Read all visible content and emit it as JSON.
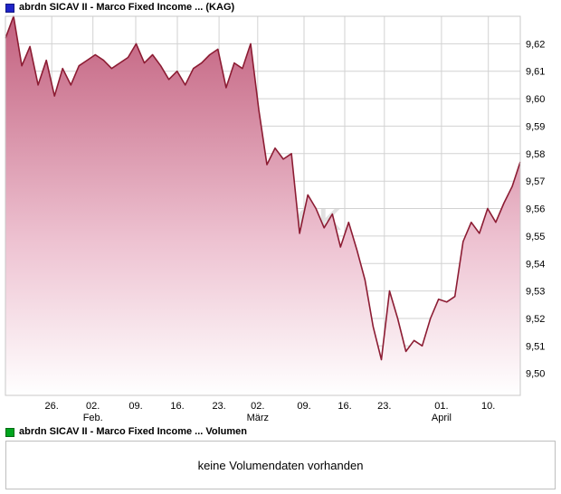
{
  "header": {
    "legend_label": "abrdn SICAV II - Marco Fixed Income ... (KAG)",
    "legend_color": "#1f24c8"
  },
  "watermark": "CK",
  "chart_data": {
    "type": "area",
    "title": "abrdn SICAV II - Marco Fixed Income ... (KAG)",
    "ylabel": "",
    "xlabel": "",
    "ylim": [
      9.492,
      9.63
    ],
    "grid": true,
    "grid_color": "#d2d2d2",
    "line_color": "#8c1c33",
    "fill_top": "#c2607e",
    "fill_mid": "#eec3d2",
    "fill_bottom": "#ffffff",
    "values": [
      9.622,
      9.63,
      9.612,
      9.619,
      9.605,
      9.614,
      9.601,
      9.611,
      9.605,
      9.612,
      9.614,
      9.616,
      9.614,
      9.611,
      9.613,
      9.615,
      9.62,
      9.613,
      9.616,
      9.612,
      9.607,
      9.61,
      9.605,
      9.611,
      9.613,
      9.616,
      9.618,
      9.604,
      9.613,
      9.611,
      9.62,
      9.596,
      9.576,
      9.582,
      9.578,
      9.58,
      9.551,
      9.565,
      9.56,
      9.553,
      9.558,
      9.546,
      9.555,
      9.545,
      9.534,
      9.517,
      9.505,
      9.53,
      9.52,
      9.508,
      9.512,
      9.51,
      9.52,
      9.527,
      9.526,
      9.528,
      9.548,
      9.555,
      9.551,
      9.56,
      9.555,
      9.562,
      9.568,
      9.577
    ],
    "y_ticks": [
      {
        "label": "9,62",
        "value": 9.62
      },
      {
        "label": "9,61",
        "value": 9.61
      },
      {
        "label": "9,60",
        "value": 9.6
      },
      {
        "label": "9,59",
        "value": 9.59
      },
      {
        "label": "9,58",
        "value": 9.58
      },
      {
        "label": "9,57",
        "value": 9.57
      },
      {
        "label": "9,56",
        "value": 9.56
      },
      {
        "label": "9,55",
        "value": 9.55
      },
      {
        "label": "9,54",
        "value": 9.54
      },
      {
        "label": "9,53",
        "value": 9.53
      },
      {
        "label": "9,52",
        "value": 9.52
      },
      {
        "label": "9,51",
        "value": 9.51
      },
      {
        "label": "9,50",
        "value": 9.5
      }
    ],
    "x_ticks": [
      {
        "label": "26.",
        "pos": 0.09
      },
      {
        "label": "02.",
        "month": "Feb.",
        "pos": 0.17
      },
      {
        "label": "09.",
        "pos": 0.253
      },
      {
        "label": "16.",
        "pos": 0.334
      },
      {
        "label": "23.",
        "pos": 0.415
      },
      {
        "label": "02.",
        "month": "März",
        "pos": 0.49
      },
      {
        "label": "09.",
        "pos": 0.58
      },
      {
        "label": "16.",
        "pos": 0.659
      },
      {
        "label": "23.",
        "pos": 0.736
      },
      {
        "label": "01.",
        "month": "April",
        "pos": 0.847
      },
      {
        "label": "10.",
        "pos": 0.938
      }
    ]
  },
  "volume": {
    "legend_label": "abrdn SICAV II - Marco Fixed Income ... Volumen",
    "legend_color": "#00a51e",
    "message": "keine Volumendaten vorhanden"
  }
}
